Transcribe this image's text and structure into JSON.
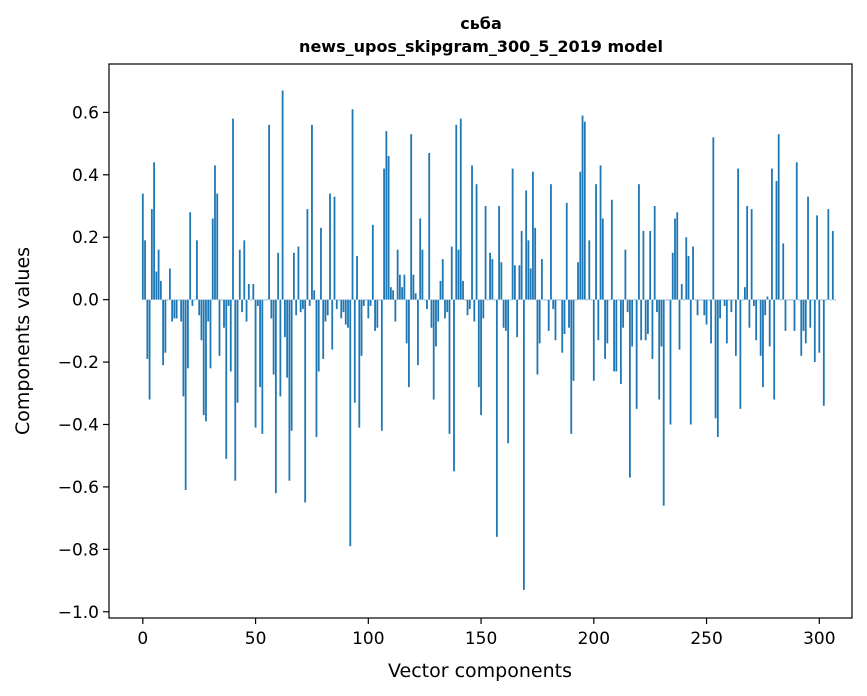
{
  "chart_data": {
    "type": "bar",
    "title_line1": "сьба",
    "title_line2": "news_upos_skipgram_300_5_2019 model",
    "xlabel": "Vector components",
    "ylabel": "Components values",
    "xlim": [
      -15,
      314.5
    ],
    "ylim": [
      -1.02,
      0.755
    ],
    "xticks": [
      0,
      50,
      100,
      150,
      200,
      250,
      300
    ],
    "yticks": [
      -1.0,
      -0.8,
      -0.6,
      -0.4,
      -0.2,
      0.0,
      0.2,
      0.4,
      0.6
    ],
    "ytick_labels": [
      "−1.0",
      "−0.8",
      "−0.6",
      "−0.4",
      "−0.2",
      "0.0",
      "0.2",
      "0.4",
      "0.6"
    ],
    "bar_color": "#1f77b4",
    "values": [
      0.34,
      0.19,
      -0.19,
      -0.32,
      0.29,
      0.44,
      0.09,
      0.16,
      0.06,
      -0.21,
      -0.17,
      0.0,
      0.1,
      -0.07,
      -0.06,
      -0.06,
      0.0,
      -0.07,
      -0.31,
      -0.61,
      -0.22,
      0.28,
      -0.02,
      0.0,
      0.19,
      -0.05,
      -0.13,
      -0.37,
      -0.39,
      -0.07,
      -0.22,
      0.26,
      0.43,
      0.34,
      -0.18,
      0.0,
      -0.09,
      -0.51,
      -0.02,
      -0.23,
      0.58,
      -0.58,
      -0.33,
      0.16,
      -0.04,
      0.19,
      -0.07,
      0.05,
      0.0,
      0.05,
      -0.41,
      -0.02,
      -0.28,
      -0.43,
      0.0,
      0.0,
      0.56,
      -0.06,
      -0.24,
      -0.62,
      0.15,
      -0.31,
      0.67,
      -0.12,
      -0.25,
      -0.58,
      -0.42,
      0.15,
      -0.05,
      0.17,
      -0.04,
      -0.03,
      -0.65,
      0.29,
      -0.02,
      0.56,
      0.03,
      -0.44,
      -0.23,
      0.23,
      -0.19,
      -0.07,
      -0.05,
      0.34,
      -0.16,
      0.33,
      -0.03,
      0.0,
      -0.06,
      -0.04,
      -0.08,
      -0.09,
      -0.79,
      0.61,
      -0.33,
      0.14,
      -0.41,
      -0.18,
      -0.02,
      0.0,
      -0.06,
      -0.02,
      0.24,
      -0.1,
      -0.09,
      0.0,
      -0.42,
      0.42,
      0.54,
      0.46,
      0.04,
      0.03,
      -0.07,
      0.16,
      0.08,
      0.04,
      0.08,
      -0.14,
      -0.28,
      0.53,
      0.08,
      0.02,
      -0.21,
      0.26,
      0.16,
      0.0,
      -0.03,
      0.47,
      -0.09,
      -0.32,
      -0.15,
      -0.07,
      0.06,
      0.13,
      -0.06,
      -0.04,
      -0.43,
      0.17,
      -0.55,
      0.56,
      0.16,
      0.58,
      0.06,
      0.0,
      -0.05,
      -0.03,
      0.43,
      -0.07,
      0.37,
      -0.28,
      -0.37,
      -0.06,
      0.3,
      0.0,
      0.15,
      0.13,
      0.0,
      -0.76,
      0.3,
      0.12,
      -0.09,
      -0.1,
      -0.46,
      0.0,
      0.42,
      0.11,
      -0.12,
      0.11,
      0.22,
      -0.93,
      0.35,
      0.19,
      0.1,
      0.41,
      0.23,
      -0.24,
      -0.14,
      0.13,
      0.0,
      0.0,
      -0.1,
      0.37,
      -0.03,
      -0.13,
      0.0,
      0.0,
      -0.17,
      -0.11,
      0.31,
      -0.09,
      -0.43,
      -0.26,
      0.0,
      0.12,
      0.41,
      0.59,
      0.57,
      0.0,
      0.19,
      0.0,
      -0.26,
      0.37,
      -0.13,
      0.43,
      0.26,
      -0.19,
      -0.14,
      0.0,
      0.32,
      -0.23,
      -0.23,
      0.0,
      -0.27,
      -0.09,
      0.16,
      -0.04,
      -0.57,
      -0.15,
      0.0,
      -0.35,
      0.37,
      -0.13,
      0.22,
      -0.13,
      -0.11,
      0.22,
      -0.19,
      0.3,
      -0.04,
      -0.32,
      -0.15,
      -0.66,
      0.0,
      0.0,
      -0.4,
      0.15,
      0.26,
      0.28,
      -0.16,
      0.05,
      0.0,
      0.2,
      0.14,
      -0.4,
      0.17,
      0.0,
      -0.05,
      0.0,
      0.0,
      -0.05,
      -0.08,
      0.0,
      -0.14,
      0.52,
      -0.38,
      -0.44,
      -0.06,
      0.0,
      -0.02,
      -0.14,
      0.0,
      -0.04,
      0.0,
      -0.18,
      0.42,
      -0.35,
      0.0,
      0.04,
      0.3,
      -0.09,
      0.29,
      -0.02,
      -0.13,
      0.0,
      -0.18,
      -0.28,
      -0.05,
      0.01,
      -0.15,
      0.42,
      -0.32,
      0.38,
      0.53,
      0.0,
      0.18,
      -0.1,
      0.0,
      0.0,
      0.0,
      -0.1,
      0.44,
      0.0,
      -0.18,
      -0.1,
      -0.14,
      0.33,
      -0.09,
      0.0,
      -0.2,
      0.27,
      -0.17,
      0.0,
      -0.34,
      0.0,
      0.29,
      0.0,
      0.22,
      0.0
    ]
  }
}
